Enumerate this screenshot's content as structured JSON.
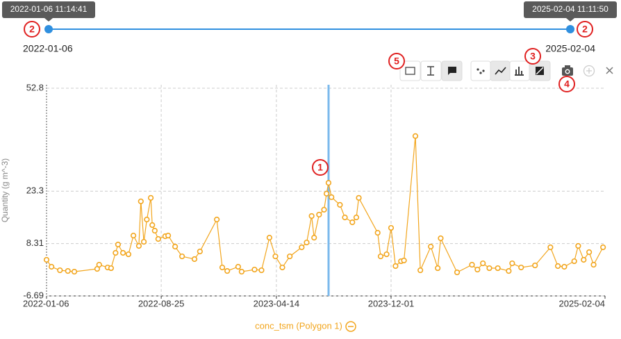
{
  "slider": {
    "start_tooltip": "2022-01-06 11:14:41",
    "end_tooltip": "2025-02-04 11:11:50",
    "start_label": "2022-01-06",
    "end_label": "2025-02-04"
  },
  "annotations": [
    "1",
    "2",
    "2",
    "3",
    "4",
    "5"
  ],
  "chart_data": {
    "type": "line",
    "y_label": "Quantity (g m^-3)",
    "x": [
      "2022-01-06",
      "2022-01-16",
      "2022-02-02",
      "2022-02-18",
      "2022-03-03",
      "2022-04-18",
      "2022-04-22",
      "2022-05-09",
      "2022-05-16",
      "2022-05-25",
      "2022-05-30",
      "2022-06-09",
      "2022-06-20",
      "2022-06-30",
      "2022-07-11",
      "2022-07-15",
      "2022-07-21",
      "2022-07-27",
      "2022-08-04",
      "2022-08-07",
      "2022-08-12",
      "2022-08-19",
      "2022-09-02",
      "2022-09-08",
      "2022-09-22",
      "2022-10-06",
      "2022-10-31",
      "2022-11-11",
      "2022-12-15",
      "2022-12-26",
      "2023-01-05",
      "2023-01-27",
      "2023-02-03",
      "2023-03-01",
      "2023-03-15",
      "2023-03-31",
      "2023-04-12",
      "2023-04-26",
      "2023-05-11",
      "2023-06-04",
      "2023-06-14",
      "2023-06-24",
      "2023-06-29",
      "2023-07-09",
      "2023-07-19",
      "2023-07-24",
      "2023-07-28",
      "2023-08-03",
      "2023-08-20",
      "2023-08-30",
      "2023-09-14",
      "2023-09-22",
      "2023-09-27",
      "2023-11-04",
      "2023-11-10",
      "2023-11-22",
      "2023-12-01",
      "2023-12-10",
      "2023-12-21",
      "2023-12-27",
      "2024-01-19",
      "2024-01-29",
      "2024-02-19",
      "2024-03-04",
      "2024-03-10",
      "2024-04-12",
      "2024-05-12",
      "2024-05-23",
      "2024-06-03",
      "2024-06-16",
      "2024-07-03",
      "2024-07-25",
      "2024-08-01",
      "2024-08-19",
      "2024-09-16",
      "2024-10-17",
      "2024-11-01",
      "2024-11-14",
      "2024-12-04",
      "2024-12-12",
      "2024-12-23",
      "2025-01-03",
      "2025-01-12",
      "2025-01-31"
    ],
    "series": [
      {
        "name": "conc_tsm (Polygon 1)",
        "color": "#f2a51c",
        "values": [
          3.65,
          1.66,
          0.66,
          0.46,
          0.26,
          1.06,
          2.25,
          1.46,
          1.26,
          5.64,
          8.03,
          5.64,
          5.24,
          10.6,
          7.63,
          20.4,
          8.82,
          15.2,
          21.4,
          13.6,
          12.0,
          9.62,
          10.4,
          10.6,
          7.43,
          4.64,
          3.85,
          6.04,
          15.2,
          1.46,
          0.46,
          1.66,
          0.26,
          0.86,
          0.66,
          10.0,
          4.64,
          1.46,
          4.64,
          7.23,
          8.62,
          16.2,
          10.0,
          16.6,
          18.0,
          22.6,
          25.7,
          21.6,
          19.4,
          15.8,
          14.4,
          15.8,
          21.4,
          11.4,
          4.64,
          5.24,
          12.8,
          1.86,
          3.25,
          3.45,
          39.1,
          0.66,
          7.43,
          1.26,
          9.82,
          0.06,
          2.25,
          0.86,
          2.65,
          1.26,
          1.26,
          0.46,
          2.65,
          1.46,
          2.05,
          7.23,
          1.86,
          1.66,
          3.25,
          7.63,
          3.65,
          5.84,
          2.25,
          7.23
        ]
      }
    ],
    "xlim": [
      "2022-01-06",
      "2025-02-04"
    ],
    "xticks": [
      "2022-01-06",
      "2022-08-25",
      "2023-04-14",
      "2023-12-01",
      "2025-02-04"
    ],
    "ylim": [
      -6.69,
      52.8
    ],
    "yticks": [
      -6.69,
      8.31,
      23.3,
      52.8
    ],
    "grid": true
  }
}
